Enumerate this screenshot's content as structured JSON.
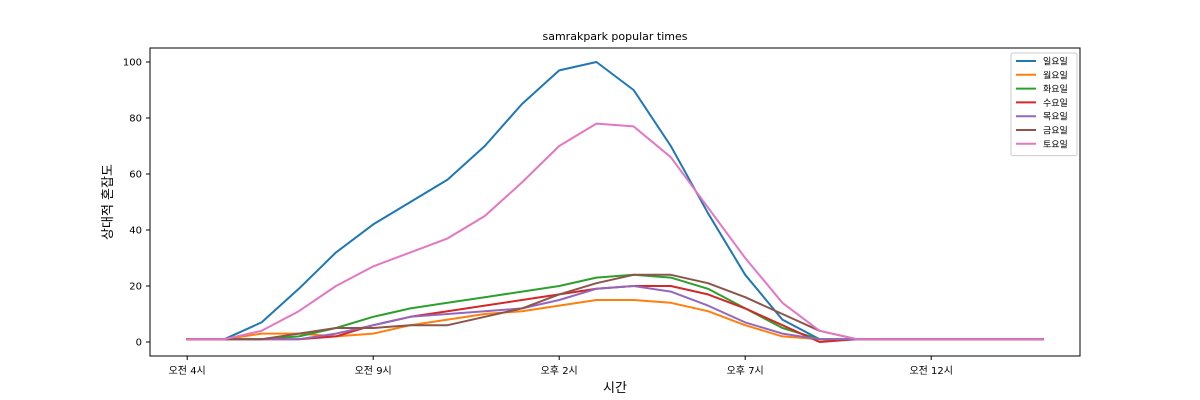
{
  "chart_data": {
    "type": "line",
    "title": "samrakpark popular times",
    "xlabel": "시간",
    "ylabel": "상대적 혼잡도",
    "x_range": [
      4,
      27
    ],
    "ylim": [
      0,
      100
    ],
    "x_ticks": [
      {
        "value": 4,
        "label": "오전 4시"
      },
      {
        "value": 9,
        "label": "오전 9시"
      },
      {
        "value": 14,
        "label": "오후 2시"
      },
      {
        "value": 19,
        "label": "오후 7시"
      },
      {
        "value": 24,
        "label": "오전 12시"
      }
    ],
    "y_ticks": [
      0,
      20,
      40,
      60,
      80,
      100
    ],
    "grid": false,
    "legend_position": "top-right",
    "x": [
      4,
      5,
      6,
      7,
      8,
      9,
      10,
      11,
      12,
      13,
      14,
      15,
      16,
      17,
      18,
      19,
      20,
      21,
      22,
      23,
      24,
      25,
      26,
      27
    ],
    "series": [
      {
        "name": "일요일",
        "color": "#1f77b4",
        "values": [
          1,
          1,
          7,
          19,
          32,
          42,
          50,
          58,
          70,
          85,
          97,
          100,
          90,
          70,
          46,
          24,
          8,
          1,
          1,
          1,
          1,
          1,
          1,
          1
        ]
      },
      {
        "name": "월요일",
        "color": "#ff7f0e",
        "values": [
          1,
          1,
          3,
          3,
          2,
          3,
          6,
          8,
          10,
          11,
          13,
          15,
          15,
          14,
          11,
          6,
          2,
          1,
          1,
          1,
          1,
          1,
          1,
          1
        ]
      },
      {
        "name": "화요일",
        "color": "#2ca02c",
        "values": [
          1,
          1,
          1,
          2,
          5,
          9,
          12,
          14,
          16,
          18,
          20,
          23,
          24,
          23,
          19,
          12,
          5,
          1,
          1,
          1,
          1,
          1,
          1,
          1
        ]
      },
      {
        "name": "수요일",
        "color": "#d62728",
        "values": [
          1,
          1,
          1,
          1,
          2,
          6,
          9,
          11,
          13,
          15,
          17,
          19,
          20,
          20,
          17,
          12,
          6,
          0,
          1,
          1,
          1,
          1,
          1,
          1
        ]
      },
      {
        "name": "목요일",
        "color": "#9467bd",
        "values": [
          1,
          1,
          1,
          1,
          3,
          6,
          9,
          10,
          11,
          12,
          15,
          19,
          20,
          18,
          13,
          7,
          3,
          1,
          1,
          1,
          1,
          1,
          1,
          1
        ]
      },
      {
        "name": "금요일",
        "color": "#8c564b",
        "values": [
          1,
          1,
          1,
          3,
          5,
          5,
          6,
          6,
          9,
          12,
          17,
          21,
          24,
          24,
          21,
          16,
          10,
          4,
          1,
          1,
          1,
          1,
          1,
          1
        ]
      },
      {
        "name": "토요일",
        "color": "#e377c2",
        "values": [
          1,
          1,
          4,
          11,
          20,
          27,
          32,
          37,
          45,
          57,
          70,
          78,
          77,
          66,
          48,
          30,
          14,
          4,
          1,
          1,
          1,
          1,
          1,
          1
        ]
      }
    ]
  }
}
